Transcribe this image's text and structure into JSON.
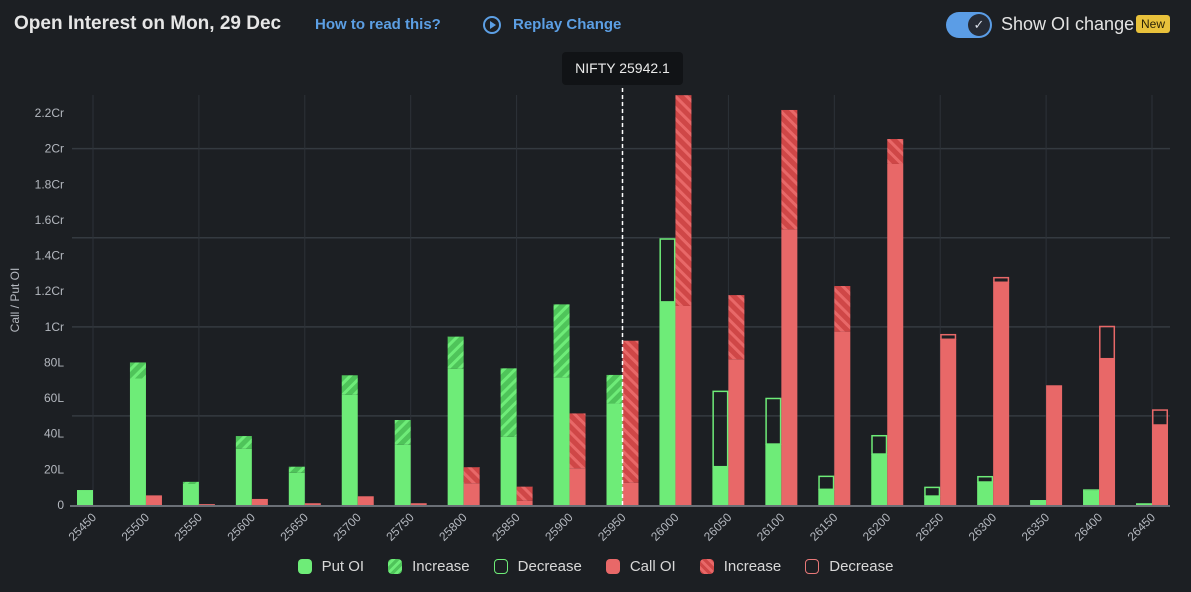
{
  "header": {
    "title": "Open Interest on Mon, 29 Dec",
    "how_to_read": "How to read this?",
    "replay": "Replay Change",
    "toggle_label": "Show OI change",
    "toggle_on": true,
    "new_badge": "New"
  },
  "tooltip": {
    "label": "NIFTY 25942.1"
  },
  "colors": {
    "put": "#6eec78",
    "put_hatch": "#4fc45a",
    "call": "#e86868",
    "call_hatch": "#cf4747",
    "link": "#5c9fe4",
    "badge": "#e8c13b"
  },
  "legend": [
    "Put OI",
    "Increase",
    "Decrease",
    "Call OI",
    "Increase",
    "Decrease"
  ],
  "chart_data": {
    "type": "bar",
    "ylabel": "Call / Put OI",
    "unit": "L (lakh)",
    "ylim": [
      0,
      220
    ],
    "yticks": [
      {
        "v": 0,
        "l": "0"
      },
      {
        "v": 20,
        "l": "20L"
      },
      {
        "v": 40,
        "l": "40L"
      },
      {
        "v": 60,
        "l": "60L"
      },
      {
        "v": 80,
        "l": "80L"
      },
      {
        "v": 100,
        "l": "1Cr"
      },
      {
        "v": 120,
        "l": "1.2Cr"
      },
      {
        "v": 140,
        "l": "1.4Cr"
      },
      {
        "v": 160,
        "l": "1.6Cr"
      },
      {
        "v": 180,
        "l": "1.8Cr"
      },
      {
        "v": 200,
        "l": "2Cr"
      },
      {
        "v": 220,
        "l": "2.2Cr"
      }
    ],
    "spot": 25942.1,
    "spot_label": "NIFTY",
    "categories": [
      "25450",
      "25500",
      "25550",
      "25600",
      "25650",
      "25700",
      "25750",
      "25800",
      "25850",
      "25900",
      "25950",
      "26000",
      "26050",
      "26100",
      "26150",
      "26200",
      "26250",
      "26300",
      "26350",
      "26400",
      "26450"
    ],
    "put_current": [
      8.4,
      80,
      13,
      38.7,
      21.5,
      72.8,
      47.7,
      94.5,
      76.7,
      112.6,
      73,
      114,
      21.5,
      34.2,
      8.8,
      28.6,
      5,
      12.9,
      2,
      7.5,
      1
    ],
    "put_previous": [
      8.4,
      71,
      11.8,
      31.6,
      18.1,
      61.9,
      33.8,
      76.5,
      38.3,
      71.7,
      57,
      149.7,
      64.2,
      60.2,
      16.5,
      39.3,
      10.3,
      16.3,
      2.8,
      8.8,
      1
    ],
    "call_current": [
      0,
      4.3,
      0.5,
      3.4,
      1,
      4.9,
      1,
      21.2,
      10.3,
      51.4,
      92.2,
      230,
      117.8,
      221.7,
      122.9,
      205.4,
      93,
      125,
      67.2,
      82.1,
      44.9
    ],
    "call_previous": [
      0,
      5.4,
      0.5,
      3.4,
      1,
      4.9,
      1,
      12.2,
      2.4,
      20.6,
      12.5,
      111.7,
      81.8,
      154.7,
      97.3,
      191.4,
      96,
      128,
      67.2,
      100.6,
      53.7
    ]
  }
}
